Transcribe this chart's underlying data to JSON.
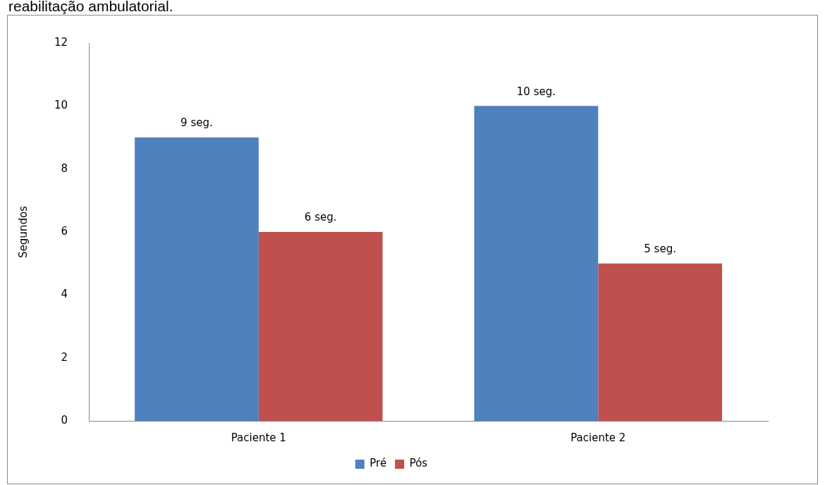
{
  "chart_data": {
    "type": "bar",
    "title": "reabilitação ambulatorial.",
    "ylabel": "Segundos",
    "categories": [
      "Paciente 1",
      "Paciente 2"
    ],
    "series": [
      {
        "name": "Pré",
        "color": "#4f81bd",
        "values": [
          9,
          10
        ],
        "value_labels": [
          "9 seg.",
          "10 seg."
        ]
      },
      {
        "name": "Pós",
        "color": "#c0504d",
        "values": [
          6,
          5
        ],
        "value_labels": [
          "6 seg.",
          "5 seg."
        ]
      }
    ],
    "ylim": [
      0,
      12
    ],
    "yticks": [
      0,
      2,
      4,
      6,
      8,
      10,
      12
    ],
    "grid": false,
    "legend": "bottom"
  }
}
